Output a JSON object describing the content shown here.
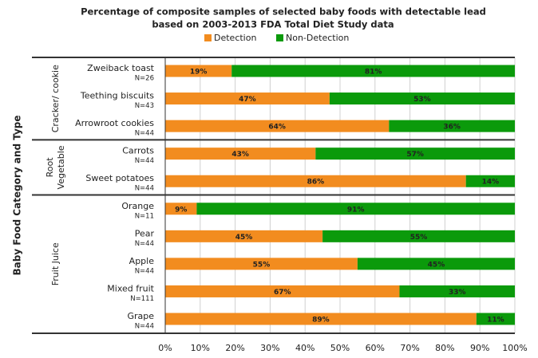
{
  "chart_data": {
    "type": "stacked-bar-horizontal",
    "title": [
      "Percentage of composite samples of selected baby foods with detectable lead",
      "based on 2003-2013 FDA Total Diet Study data"
    ],
    "y_label": "Baby Food  Category and Type",
    "categories": [
      "Zweiback toast",
      "Teething biscuits",
      "Arrowroot cookies",
      "Carrots",
      "Sweet potatoes",
      "Orange",
      "Pear",
      "Apple",
      "Mixed fruit",
      "Grape"
    ],
    "sample_sizes": [
      "N=26",
      "N=43",
      "N=44",
      "N=44",
      "N=44",
      "N=11",
      "N=44",
      "N=44",
      "N=111",
      "N=44"
    ],
    "groups": [
      {
        "label": [
          "Cracker/ cookie"
        ],
        "count": 3
      },
      {
        "label": [
          "Root",
          "Vegetable"
        ],
        "count": 2
      },
      {
        "label": [
          "Fruit Juice"
        ],
        "count": 5
      }
    ],
    "series": [
      {
        "name": "Detection",
        "color": "#f28c1f",
        "values": [
          19,
          47,
          64,
          43,
          86,
          9,
          45,
          55,
          67,
          89
        ],
        "value_labels": [
          "19%",
          "47%",
          "64%",
          "43%",
          "86%",
          "9%",
          "45%",
          "55%",
          "67%",
          "89%"
        ]
      },
      {
        "name": "Non-Detection",
        "color": "#0b9a0b",
        "values": [
          81,
          53,
          36,
          57,
          14,
          91,
          55,
          45,
          33,
          11
        ],
        "value_labels": [
          "81%",
          "53%",
          "36%",
          "57%",
          "14%",
          "91%",
          "55%",
          "45%",
          "33%",
          "11%"
        ]
      }
    ],
    "xlim": [
      0,
      100
    ],
    "xticks": [
      {
        "value": 0,
        "label": "0%"
      },
      {
        "value": 10,
        "label": "10%"
      },
      {
        "value": 20,
        "label": "20%"
      },
      {
        "value": 30,
        "label": "30%"
      },
      {
        "value": 40,
        "label": "40%"
      },
      {
        "value": 50,
        "label": "50%"
      },
      {
        "value": 60,
        "label": "60%"
      },
      {
        "value": 70,
        "label": "70%"
      },
      {
        "value": 80,
        "label": "80%"
      },
      {
        "value": 90,
        "label": "90%"
      },
      {
        "value": 100,
        "label": "100%"
      }
    ],
    "grid": true
  }
}
